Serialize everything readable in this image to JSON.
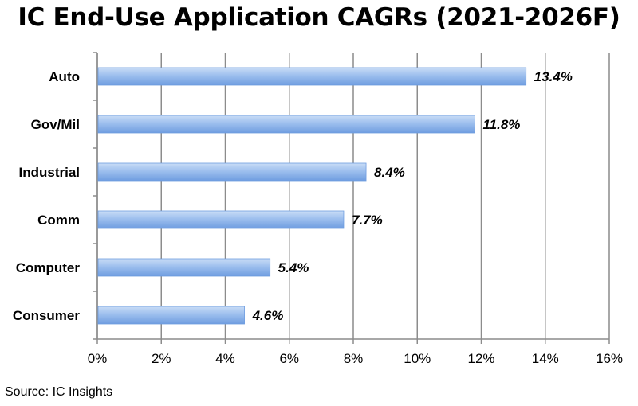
{
  "title": "IC End-Use Application CAGRs (2021-2026F)",
  "source": "Source:  IC Insights",
  "colors": {
    "bar_light": "#c9dcf6",
    "bar_mid": "#9dbfee",
    "bar_dark": "#6f9de0",
    "grid": "#8c8c8c"
  },
  "chart_data": {
    "type": "bar",
    "orientation": "horizontal",
    "categories": [
      "Auto",
      "Gov/Mil",
      "Industrial",
      "Comm",
      "Computer",
      "Consumer"
    ],
    "values": [
      13.4,
      11.8,
      8.4,
      7.7,
      5.4,
      4.6
    ],
    "value_labels": [
      "13.4%",
      "11.8%",
      "8.4%",
      "7.7%",
      "5.4%",
      "4.6%"
    ],
    "xlim": [
      0,
      16
    ],
    "x_ticks": [
      0,
      2,
      4,
      6,
      8,
      10,
      12,
      14,
      16
    ],
    "x_tick_labels": [
      "0%",
      "2%",
      "4%",
      "6%",
      "8%",
      "10%",
      "12%",
      "14%",
      "16%"
    ],
    "grid": "vertical",
    "legend": "none",
    "title": "IC End-Use Application CAGRs (2021-2026F)"
  }
}
